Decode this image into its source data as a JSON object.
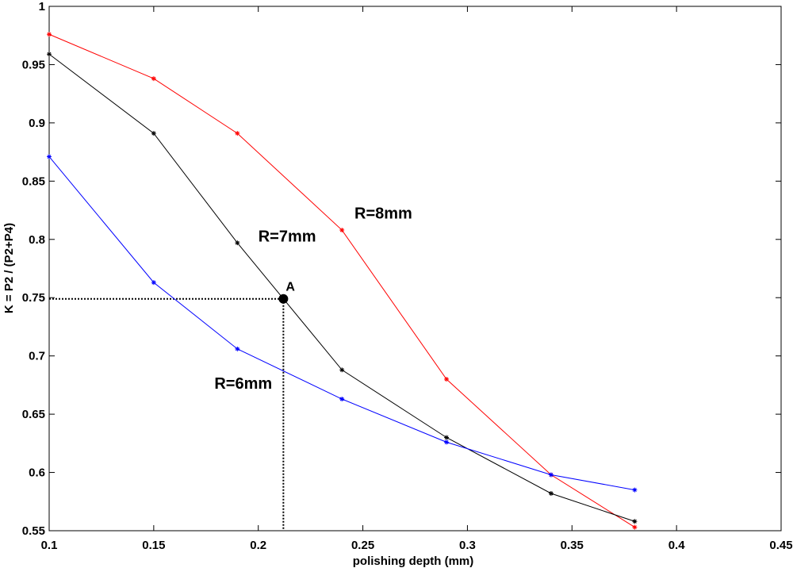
{
  "chart_data": {
    "type": "line",
    "xlabel": "polishing depth (mm)",
    "ylabel": "K = P2 / (P2+P4)",
    "xlim": [
      0.1,
      0.45
    ],
    "ylim": [
      0.55,
      1.0
    ],
    "xticks": [
      "0.1",
      "0.15",
      "0.2",
      "0.25",
      "0.3",
      "0.35",
      "0.4",
      "0.45"
    ],
    "yticks": [
      "0.55",
      "0.6",
      "0.65",
      "0.7",
      "0.75",
      "0.8",
      "0.85",
      "0.9",
      "0.95",
      "1"
    ],
    "grid": false,
    "marker": "asterisk",
    "series": [
      {
        "name": "R=8mm",
        "color": "#ff0000",
        "x": [
          0.1,
          0.15,
          0.19,
          0.24,
          0.29,
          0.34,
          0.38
        ],
        "y": [
          0.976,
          0.938,
          0.891,
          0.808,
          0.68,
          0.598,
          0.553
        ]
      },
      {
        "name": "R=7mm",
        "color": "#000000",
        "x": [
          0.1,
          0.15,
          0.19,
          0.24,
          0.29,
          0.34,
          0.38
        ],
        "y": [
          0.959,
          0.891,
          0.797,
          0.688,
          0.63,
          0.582,
          0.558
        ]
      },
      {
        "name": "R=6mm",
        "color": "#0000ff",
        "x": [
          0.1,
          0.15,
          0.19,
          0.24,
          0.29,
          0.34,
          0.38
        ],
        "y": [
          0.871,
          0.763,
          0.706,
          0.663,
          0.626,
          0.598,
          0.585
        ]
      }
    ],
    "annotations": [
      {
        "text": "R=8mm",
        "x": 0.246,
        "y": 0.818
      },
      {
        "text": "R=7mm",
        "x": 0.2,
        "y": 0.798
      },
      {
        "text": "R=6mm",
        "x": 0.179,
        "y": 0.672
      }
    ],
    "point_A": {
      "label": "A",
      "x": 0.212,
      "y": 0.749
    }
  }
}
